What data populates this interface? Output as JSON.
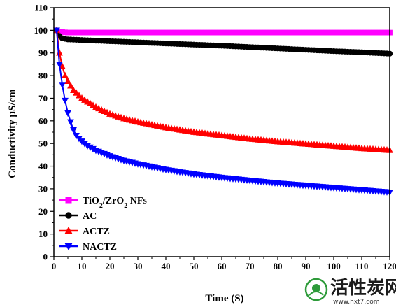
{
  "chart_data": {
    "type": "line",
    "xlabel": "Time (S)",
    "ylabel": "Conductivity µS/cm",
    "xlim": [
      0,
      120
    ],
    "ylim": [
      0,
      110
    ],
    "x_ticks": [
      0,
      10,
      20,
      30,
      40,
      50,
      60,
      70,
      80,
      90,
      100,
      110,
      120
    ],
    "y_ticks": [
      0,
      10,
      20,
      30,
      40,
      50,
      60,
      70,
      80,
      90,
      100,
      110
    ],
    "grid": false,
    "legend_position": "bottom-left",
    "series": [
      {
        "name": "TiO2/ZrO2 NFs",
        "name_base": "TiO",
        "name_sub1": "2",
        "name_mid": "/ZrO",
        "name_sub2": "2",
        "name_tail": " NFs",
        "color": "#ff00ff",
        "marker": "square",
        "x": [
          1,
          2,
          3,
          5,
          10,
          20,
          30,
          40,
          60,
          80,
          100,
          120
        ],
        "y": [
          100,
          99.5,
          99.2,
          99,
          99,
          99,
          99,
          99,
          99,
          99,
          99,
          99
        ]
      },
      {
        "name": "AC",
        "color": "#000000",
        "marker": "circle",
        "x": [
          1,
          2,
          3,
          5,
          10,
          20,
          30,
          40,
          50,
          60,
          70,
          80,
          90,
          100,
          110,
          120
        ],
        "y": [
          100,
          97.5,
          96.5,
          96,
          95.7,
          95.2,
          94.7,
          94.2,
          93.7,
          93.2,
          92.6,
          92,
          91.4,
          90.8,
          90.3,
          89.7
        ]
      },
      {
        "name": "ACTZ",
        "color": "#ff0000",
        "marker": "triangle-up",
        "x": [
          1,
          2,
          3,
          4,
          5,
          7,
          10,
          15,
          20,
          25,
          30,
          40,
          50,
          60,
          70,
          80,
          90,
          100,
          110,
          120
        ],
        "y": [
          100,
          90,
          84,
          80,
          77.5,
          73.5,
          70,
          66,
          63,
          61,
          59.5,
          57,
          55,
          53.5,
          52,
          50.8,
          49.8,
          48.8,
          47.8,
          47
        ]
      },
      {
        "name": "NACTZ",
        "color": "#0000ff",
        "marker": "triangle-down",
        "x": [
          1,
          2,
          3,
          4,
          5,
          6,
          7,
          8,
          10,
          12,
          15,
          20,
          25,
          30,
          40,
          50,
          60,
          70,
          80,
          90,
          100,
          110,
          120
        ],
        "y": [
          100,
          85,
          76,
          69,
          63.5,
          59.5,
          56,
          53.5,
          51,
          49,
          47,
          44.5,
          42.5,
          41,
          38.5,
          36.5,
          35,
          33.7,
          32.5,
          31.5,
          30.5,
          29.5,
          28.5
        ]
      }
    ]
  },
  "watermark": {
    "text": "活性炭网",
    "url": "www.hxt7.com",
    "color": "#2e9b3a"
  }
}
